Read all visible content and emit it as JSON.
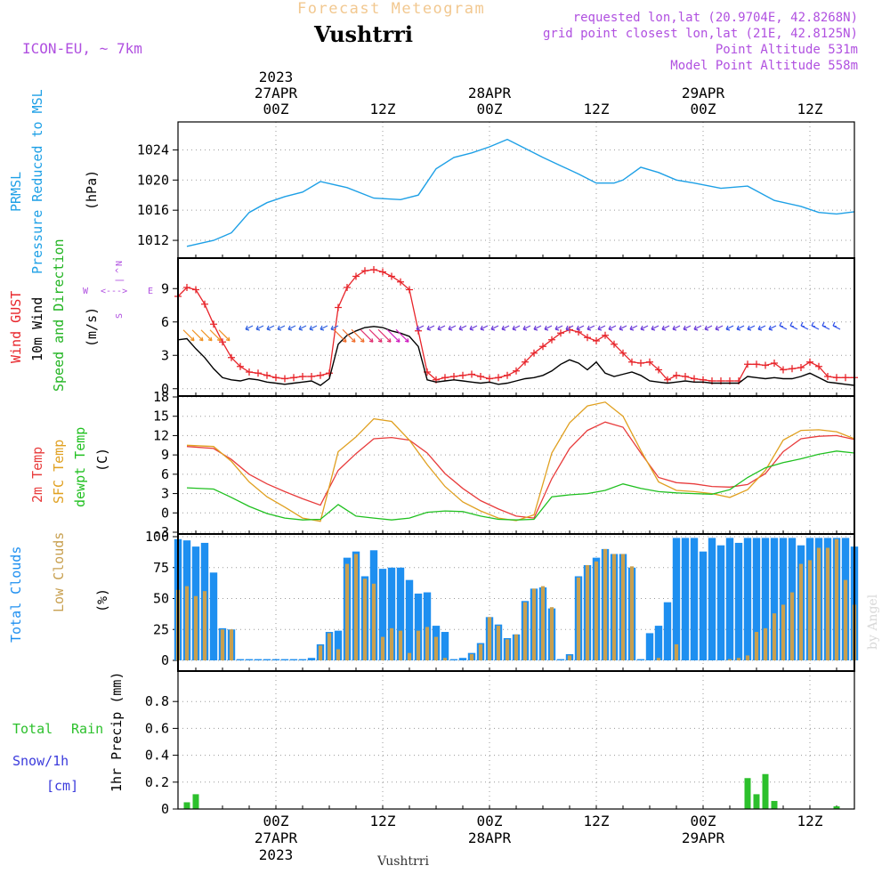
{
  "header": {
    "product": "Forecast Meteogram",
    "location": "Vushtrri",
    "model": "ICON-EU, ~ 7km",
    "requested": "requested lon,lat (20.9704E, 42.8268N)",
    "gridpoint": "grid point closest lon,lat (21E, 42.8125N)",
    "point_alt": "Point Altitude 531m",
    "model_alt": "Model Point Altitude 558m",
    "footer_label": "Vushtrri",
    "watermark": "by Angel"
  },
  "time_axis": {
    "top_labels": [
      {
        "l1": "2023",
        "l2": "27APR",
        "l3": "00Z"
      },
      {
        "l1": "",
        "l2": "",
        "l3": "12Z"
      },
      {
        "l1": "",
        "l2": "28APR",
        "l3": "00Z"
      },
      {
        "l1": "",
        "l2": "",
        "l3": "12Z"
      },
      {
        "l1": "",
        "l2": "29APR",
        "l3": "00Z"
      },
      {
        "l1": "",
        "l2": "",
        "l3": "12Z"
      }
    ],
    "bottom_labels": [
      {
        "l1": "00Z",
        "l2": "27APR",
        "l3": "2023"
      },
      {
        "l1": "12Z",
        "l2": "",
        "l3": ""
      },
      {
        "l1": "00Z",
        "l2": "28APR",
        "l3": ""
      },
      {
        "l1": "12Z",
        "l2": "",
        "l3": ""
      },
      {
        "l1": "00Z",
        "l2": "29APR",
        "l3": ""
      },
      {
        "l1": "12Z",
        "l2": "",
        "l3": ""
      }
    ],
    "tick_hours": [
      0,
      12,
      24,
      36,
      48,
      60
    ],
    "hour_range": [
      -11,
      65
    ]
  },
  "panels": {
    "pressure": {
      "label1": "PRMSL",
      "label2": "Pressure Reduced to MSL",
      "unit": "(hPa)",
      "color1": "#1e90ff",
      "color2": "#1ea0e6"
    },
    "wind": {
      "label_gust": "Wind GUST",
      "label_wind": "10m Wind",
      "label_dir": "Speed and Direction",
      "unit": "(m/s)",
      "compass_n": "N",
      "compass_s": "S",
      "compass_w": "W",
      "compass_e": "E",
      "compass_h": "<--->",
      "compass_v1": "^",
      "compass_v2": "|",
      "color_gust": "#e8252b",
      "color_wind": "#000000",
      "color_dir": "#22b422",
      "color_compass": "#b050e0"
    },
    "temp": {
      "label_2m": "2m Temp",
      "label_sfc": "SFC Temp",
      "label_dew": "dewpt Temp",
      "unit": "(C)",
      "color_2m": "#e83c3c",
      "color_sfc": "#e0a020",
      "color_dew": "#20c020"
    },
    "clouds": {
      "label_total": "Total Clouds",
      "label_low": "Low Clouds",
      "unit": "(%)",
      "color_total": "#1e8ff0",
      "color_low": "#c8a050"
    },
    "precip": {
      "label_rain1": "Total",
      "label_rain2": "Rain",
      "label_snow": "Snow/1h",
      "label_cm": "[cm]",
      "unit": "1hr Precip (mm)",
      "color_rain": "#2cc02c",
      "color_snow": "#3b3bdc"
    }
  },
  "chart_data": [
    {
      "type": "line",
      "title": "PRMSL Pressure Reduced to MSL",
      "ylabel": "(hPa)",
      "ylim": [
        1010,
        1027
      ],
      "yticks": [
        1012,
        1016,
        1020,
        1024
      ],
      "x_hours": [
        -10,
        -7,
        -5,
        -3,
        -1,
        1,
        3,
        5,
        8,
        11,
        14,
        16,
        18,
        20,
        22,
        24,
        26,
        28,
        30,
        32,
        34,
        36,
        38,
        39,
        41,
        43,
        45,
        47,
        50,
        53,
        56,
        59,
        61,
        63,
        65
      ],
      "series": [
        {
          "name": "PRMSL",
          "values": [
            1011.2,
            1012.0,
            1013.0,
            1015.7,
            1017.0,
            1017.8,
            1018.4,
            1019.8,
            1019.0,
            1017.6,
            1017.4,
            1018.0,
            1021.5,
            1023.0,
            1023.6,
            1024.4,
            1025.4,
            1024.2,
            1023.0,
            1021.9,
            1020.8,
            1019.6,
            1019.6,
            1020.0,
            1021.7,
            1021.0,
            1020.0,
            1019.6,
            1018.9,
            1019.2,
            1017.3,
            1016.5,
            1015.7,
            1015.5,
            1015.8
          ]
        }
      ]
    },
    {
      "type": "line",
      "title": "Wind GUST / 10m Wind Speed and Direction",
      "ylabel": "(m/s)",
      "ylim": [
        -0.5,
        11.5
      ],
      "yticks": [
        0,
        3,
        6,
        9
      ],
      "x_hours": [
        -11,
        -10,
        -9,
        -8,
        -7,
        -6,
        -5,
        -4,
        -3,
        -2,
        -1,
        0,
        1,
        2,
        3,
        4,
        5,
        6,
        7,
        8,
        9,
        10,
        11,
        12,
        13,
        14,
        15,
        16,
        17,
        18,
        19,
        20,
        21,
        22,
        23,
        24,
        25,
        26,
        27,
        28,
        29,
        30,
        31,
        32,
        33,
        34,
        35,
        36,
        37,
        38,
        39,
        40,
        41,
        42,
        43,
        44,
        45,
        46,
        47,
        48,
        49,
        50,
        51,
        52,
        53,
        54,
        55,
        56,
        57,
        58,
        59,
        60,
        61,
        62,
        63,
        64,
        65
      ],
      "series": [
        {
          "name": "Wind GUST",
          "values": [
            8.3,
            9.1,
            8.9,
            7.6,
            5.8,
            4.2,
            2.8,
            2.0,
            1.5,
            1.4,
            1.2,
            1.0,
            0.9,
            1.0,
            1.1,
            1.1,
            1.2,
            1.4,
            7.3,
            9.1,
            10.1,
            10.6,
            10.7,
            10.5,
            10.1,
            9.6,
            8.9,
            5.2,
            1.5,
            0.8,
            1.0,
            1.1,
            1.2,
            1.3,
            1.1,
            0.9,
            1.0,
            1.2,
            1.6,
            2.4,
            3.2,
            3.8,
            4.4,
            5.0,
            5.3,
            5.1,
            4.6,
            4.3,
            4.8,
            4.0,
            3.2,
            2.4,
            2.3,
            2.4,
            1.7,
            0.8,
            1.2,
            1.1,
            0.9,
            0.8,
            0.7,
            0.7,
            0.7,
            0.7,
            2.2,
            2.2,
            2.1,
            2.3,
            1.7,
            1.8,
            1.9,
            2.4,
            2.0,
            1.1,
            1.0,
            1.0,
            1.0
          ]
        },
        {
          "name": "10m Wind",
          "values": [
            4.4,
            4.5,
            3.6,
            2.8,
            1.8,
            1.0,
            0.8,
            0.7,
            0.9,
            0.8,
            0.6,
            0.5,
            0.4,
            0.5,
            0.6,
            0.7,
            0.3,
            0.9,
            4.0,
            4.8,
            5.2,
            5.5,
            5.6,
            5.5,
            5.2,
            5.0,
            4.7,
            3.8,
            0.8,
            0.6,
            0.7,
            0.8,
            0.7,
            0.6,
            0.5,
            0.6,
            0.4,
            0.5,
            0.7,
            0.9,
            1.0,
            1.2,
            1.6,
            2.2,
            2.6,
            2.3,
            1.7,
            2.4,
            1.4,
            1.1,
            1.3,
            1.5,
            1.2,
            0.7,
            0.6,
            0.5,
            0.6,
            0.7,
            0.6,
            0.6,
            0.5,
            0.5,
            0.5,
            0.5,
            1.1,
            1.0,
            0.9,
            1.0,
            0.9,
            0.9,
            1.1,
            1.4,
            1.0,
            0.6,
            0.5,
            0.4,
            0.3
          ]
        }
      ]
    },
    {
      "type": "line",
      "title": "2m Temp / SFC Temp / dewpt Temp",
      "ylabel": "(C)",
      "ylim": [
        -3,
        18
      ],
      "yticks": [
        -3,
        0,
        3,
        6,
        9,
        12,
        15,
        18
      ],
      "x_hours": [
        -10,
        -7,
        -5,
        -3,
        -1,
        1,
        3,
        5,
        7,
        9,
        11,
        13,
        15,
        17,
        19,
        21,
        23,
        25,
        27,
        29,
        31,
        33,
        35,
        37,
        39,
        41,
        43,
        45,
        47,
        49,
        51,
        53,
        55,
        57,
        59,
        61,
        63,
        65
      ],
      "series": [
        {
          "name": "2m Temp",
          "values": [
            10.3,
            10.0,
            8.3,
            6.0,
            4.5,
            3.3,
            2.2,
            1.2,
            6.6,
            9.2,
            11.5,
            11.7,
            11.3,
            9.3,
            6.1,
            3.8,
            1.9,
            0.6,
            -0.5,
            -0.8,
            5.3,
            10.0,
            12.8,
            14.1,
            13.3,
            9.3,
            5.5,
            4.7,
            4.5,
            4.1,
            4.0,
            4.4,
            6.1,
            9.5,
            11.5,
            11.9,
            12.0,
            11.4
          ]
        },
        {
          "name": "SFC Temp",
          "values": [
            10.5,
            10.3,
            8.0,
            4.8,
            2.5,
            0.9,
            -0.8,
            -1.3,
            9.5,
            11.8,
            14.6,
            14.2,
            11.3,
            7.5,
            4.1,
            1.7,
            0.3,
            -0.8,
            -1.2,
            -0.3,
            9.3,
            14.0,
            16.6,
            17.2,
            15.0,
            9.7,
            4.8,
            3.5,
            3.3,
            3.0,
            2.4,
            3.6,
            6.6,
            11.3,
            12.8,
            12.9,
            12.6,
            11.5
          ]
        },
        {
          "name": "dewpt Temp",
          "values": [
            3.9,
            3.7,
            2.4,
            1.0,
            -0.1,
            -0.8,
            -1.1,
            -1.0,
            1.3,
            -0.5,
            -0.8,
            -1.1,
            -0.8,
            0.1,
            0.3,
            0.2,
            -0.5,
            -1.0,
            -1.1,
            -1.0,
            2.5,
            2.8,
            3.0,
            3.5,
            4.5,
            3.8,
            3.3,
            3.1,
            3.0,
            2.9,
            3.6,
            5.5,
            7.0,
            7.8,
            8.4,
            9.1,
            9.6,
            9.3
          ]
        }
      ]
    },
    {
      "type": "bar",
      "title": "Total Clouds / Low Clouds",
      "ylabel": "(%)",
      "ylim": [
        0,
        100
      ],
      "yticks": [
        0,
        25,
        50,
        75,
        100
      ],
      "x_hours": [
        -11,
        -10,
        -9,
        -8,
        -7,
        -6,
        -5,
        -4,
        -3,
        -2,
        -1,
        0,
        1,
        2,
        3,
        4,
        5,
        6,
        7,
        8,
        9,
        10,
        11,
        12,
        13,
        14,
        15,
        16,
        17,
        18,
        19,
        20,
        21,
        22,
        23,
        24,
        25,
        26,
        27,
        28,
        29,
        30,
        31,
        32,
        33,
        34,
        35,
        36,
        37,
        38,
        39,
        40,
        41,
        42,
        43,
        44,
        45,
        46,
        47,
        48,
        49,
        50,
        51,
        52,
        53,
        54,
        55,
        56,
        57,
        58,
        59,
        60,
        61,
        62,
        63,
        64,
        65
      ],
      "series": [
        {
          "name": "Total Clouds",
          "values": [
            98,
            97,
            92,
            95,
            71,
            26,
            25,
            1,
            1,
            1,
            1,
            1,
            1,
            1,
            1,
            2,
            13,
            23,
            24,
            83,
            88,
            68,
            89,
            74,
            75,
            75,
            65,
            54,
            55,
            28,
            23,
            1,
            2,
            6,
            14,
            35,
            29,
            18,
            21,
            48,
            58,
            59,
            42,
            1,
            5,
            68,
            77,
            83,
            90,
            86,
            86,
            75,
            1,
            22,
            28,
            47,
            99,
            99,
            99,
            88,
            99,
            93,
            99,
            95,
            99,
            99,
            99,
            99,
            99,
            99,
            93,
            99,
            99,
            99,
            99,
            99,
            92
          ]
        },
        {
          "name": "Low Clouds",
          "values": [
            57,
            60,
            52,
            56,
            0,
            25,
            25,
            0,
            0,
            0,
            0,
            0,
            0,
            0,
            0,
            0,
            12,
            22,
            9,
            78,
            86,
            66,
            62,
            19,
            26,
            24,
            6,
            24,
            27,
            19,
            2,
            0,
            0,
            5,
            13,
            35,
            28,
            17,
            21,
            47,
            58,
            60,
            43,
            0,
            4,
            67,
            77,
            80,
            90,
            86,
            86,
            76,
            0,
            0,
            2,
            0,
            13,
            0,
            0,
            0,
            0,
            0,
            1,
            2,
            4,
            23,
            26,
            38,
            45,
            55,
            78,
            81,
            91,
            91,
            98,
            65,
            45
          ]
        }
      ]
    },
    {
      "type": "bar",
      "title": "1hr Precip",
      "ylabel": "1hr Precip (mm)",
      "ylim": [
        0,
        1.0
      ],
      "yticks": [
        0,
        0.2,
        0.4,
        0.6,
        0.8
      ],
      "series": [
        {
          "name": "Total Rain",
          "x_hours": [
            -10,
            -9,
            53,
            54,
            55,
            56,
            63
          ],
          "values": [
            0.05,
            0.11,
            0.23,
            0.11,
            0.26,
            0.06,
            0.02
          ]
        },
        {
          "name": "Snow/1h",
          "x_hours": [],
          "values": []
        }
      ]
    }
  ]
}
